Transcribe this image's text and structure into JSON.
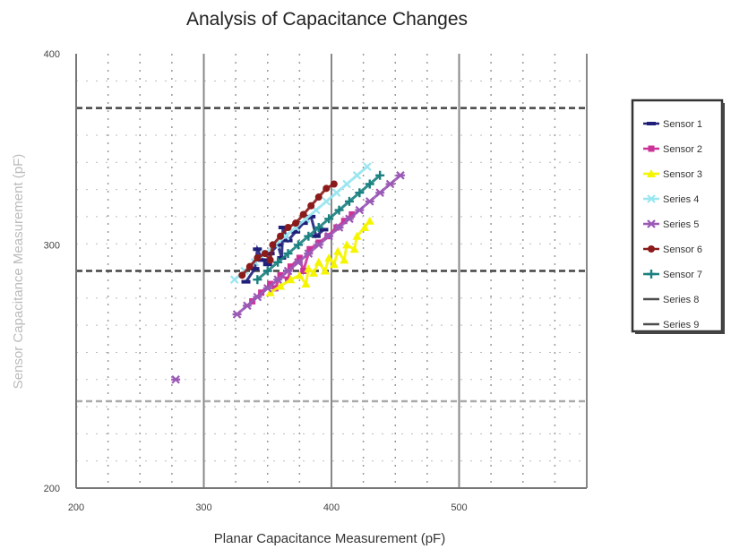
{
  "chart_data": {
    "type": "scatter",
    "title": "Analysis of Capacitance Changes",
    "xlabel": "Planar Capacitance Measurement (pF)",
    "ylabel": "Sensor Capacitance Measurement (pF)",
    "xlim": [
      200,
      600
    ],
    "ylim": [
      200,
      400
    ],
    "x_ticks": [
      "200",
      "300",
      "400",
      "500"
    ],
    "y_ticks": [
      "200",
      "300",
      "400"
    ],
    "legend_position": "right",
    "grid": true,
    "series": [
      {
        "name": "Sensor 1",
        "color": "#1f1f7a",
        "marker": "dash",
        "points": [
          [
            333,
            295
          ],
          [
            340,
            301
          ],
          [
            346,
            305
          ],
          [
            352,
            308
          ],
          [
            358,
            312
          ],
          [
            361,
            306
          ],
          [
            366,
            314
          ],
          [
            372,
            318
          ],
          [
            378,
            322
          ],
          [
            384,
            325
          ],
          [
            388,
            316
          ],
          [
            394,
            319
          ],
          [
            342,
            310
          ],
          [
            350,
            303
          ],
          [
            362,
            320
          ]
        ]
      },
      {
        "name": "Sensor 2",
        "color": "#cc3399",
        "marker": "square",
        "points": [
          [
            338,
            286
          ],
          [
            345,
            290
          ],
          [
            352,
            294
          ],
          [
            360,
            298
          ],
          [
            368,
            302
          ],
          [
            375,
            306
          ],
          [
            383,
            310
          ],
          [
            390,
            313
          ],
          [
            397,
            316
          ],
          [
            404,
            320
          ],
          [
            410,
            323
          ],
          [
            416,
            326
          ],
          [
            378,
            300
          ],
          [
            366,
            296
          ],
          [
            356,
            292
          ]
        ]
      },
      {
        "name": "Sensor 3",
        "color": "#f5f500",
        "marker": "triangle",
        "points": [
          [
            352,
            290
          ],
          [
            360,
            293
          ],
          [
            368,
            296
          ],
          [
            375,
            298
          ],
          [
            382,
            301
          ],
          [
            390,
            304
          ],
          [
            398,
            306
          ],
          [
            405,
            309
          ],
          [
            412,
            312
          ],
          [
            420,
            316
          ],
          [
            426,
            320
          ],
          [
            430,
            323
          ],
          [
            380,
            294
          ],
          [
            395,
            300
          ],
          [
            410,
            305
          ],
          [
            418,
            310
          ],
          [
            386,
            299
          ],
          [
            402,
            303
          ]
        ]
      },
      {
        "name": "Series 4",
        "color": "#99e6f0",
        "marker": "x",
        "points": [
          [
            324,
            296
          ],
          [
            332,
            300
          ],
          [
            340,
            304
          ],
          [
            348,
            308
          ],
          [
            356,
            312
          ],
          [
            364,
            316
          ],
          [
            372,
            320
          ],
          [
            380,
            324
          ],
          [
            388,
            328
          ],
          [
            396,
            332
          ],
          [
            404,
            336
          ],
          [
            412,
            340
          ],
          [
            420,
            344
          ],
          [
            428,
            348
          ]
        ]
      },
      {
        "name": "Series 5",
        "color": "#9b59b6",
        "marker": "star",
        "points": [
          [
            326,
            280
          ],
          [
            334,
            284
          ],
          [
            342,
            288
          ],
          [
            350,
            292
          ],
          [
            358,
            296
          ],
          [
            366,
            300
          ],
          [
            374,
            304
          ],
          [
            382,
            308
          ],
          [
            390,
            312
          ],
          [
            398,
            316
          ],
          [
            406,
            320
          ],
          [
            414,
            324
          ],
          [
            422,
            328
          ],
          [
            430,
            332
          ],
          [
            438,
            336
          ],
          [
            446,
            340
          ],
          [
            454,
            344
          ],
          [
            278,
            250
          ]
        ]
      },
      {
        "name": "Sensor 6",
        "color": "#8b1a1a",
        "marker": "circle",
        "points": [
          [
            330,
            298
          ],
          [
            336,
            302
          ],
          [
            342,
            306
          ],
          [
            348,
            308
          ],
          [
            354,
            312
          ],
          [
            360,
            316
          ],
          [
            366,
            320
          ],
          [
            372,
            322
          ],
          [
            378,
            326
          ],
          [
            384,
            330
          ],
          [
            390,
            334
          ],
          [
            396,
            338
          ],
          [
            402,
            340
          ],
          [
            352,
            305
          ]
        ]
      },
      {
        "name": "Sensor 7",
        "color": "#1a8080",
        "marker": "plus",
        "points": [
          [
            342,
            296
          ],
          [
            350,
            300
          ],
          [
            358,
            304
          ],
          [
            366,
            308
          ],
          [
            374,
            312
          ],
          [
            382,
            316
          ],
          [
            390,
            320
          ],
          [
            398,
            324
          ],
          [
            406,
            328
          ],
          [
            414,
            332
          ],
          [
            422,
            336
          ],
          [
            430,
            340
          ],
          [
            438,
            344
          ]
        ]
      },
      {
        "name": "Series 8",
        "color": "#4d4d4d",
        "marker": "none",
        "points": []
      },
      {
        "name": "Series 9",
        "color": "#4d4d4d",
        "marker": "none",
        "points": []
      }
    ],
    "reference_lines": [
      {
        "orientation": "horizontal",
        "y": 375,
        "style": "dashed",
        "color": "#444444"
      },
      {
        "orientation": "horizontal",
        "y": 300,
        "style": "dashed",
        "color": "#444444"
      },
      {
        "orientation": "horizontal",
        "y": 240,
        "style": "dashed",
        "color": "#aaaaaa"
      }
    ]
  }
}
